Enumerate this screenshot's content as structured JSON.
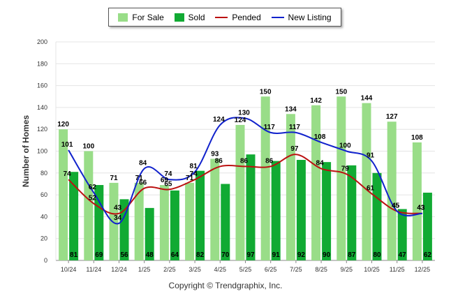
{
  "chart_data": {
    "type": "bar",
    "ylabel": "Number of Homes",
    "ylim": [
      0,
      200
    ],
    "yticks": [
      0,
      20,
      40,
      60,
      80,
      100,
      120,
      140,
      160,
      180,
      200
    ],
    "categories": [
      "10/24",
      "11/24",
      "12/24",
      "1/25",
      "2/25",
      "3/25",
      "4/25",
      "5/25",
      "6/25",
      "7/25",
      "8/25",
      "9/25",
      "10/25",
      "11/25",
      "12/25"
    ],
    "series": [
      {
        "name": "For Sale",
        "kind": "bar",
        "color": "#99dd88",
        "values": [
          120,
          100,
          71,
          71,
          69,
          71,
          93,
          124,
          150,
          134,
          142,
          150,
          144,
          127,
          108
        ]
      },
      {
        "name": "Sold",
        "kind": "bar",
        "color": "#11aa33",
        "values": [
          81,
          69,
          56,
          48,
          64,
          82,
          70,
          97,
          91,
          92,
          90,
          87,
          80,
          47,
          62
        ]
      },
      {
        "name": "Pended",
        "kind": "line",
        "color": "#bb1111",
        "values": [
          74,
          52,
          43,
          66,
          65,
          74,
          86,
          86,
          86,
          97,
          84,
          79,
          61,
          45,
          43
        ]
      },
      {
        "name": "New Listing",
        "kind": "line",
        "color": "#1122cc",
        "values": [
          101,
          62,
          34,
          84,
          74,
          81,
          124,
          130,
          117,
          117,
          108,
          100,
          91,
          45,
          43
        ]
      }
    ],
    "legend_position": "top-center",
    "grid": true
  },
  "copyright": "Copyright © Trendgraphix, Inc."
}
